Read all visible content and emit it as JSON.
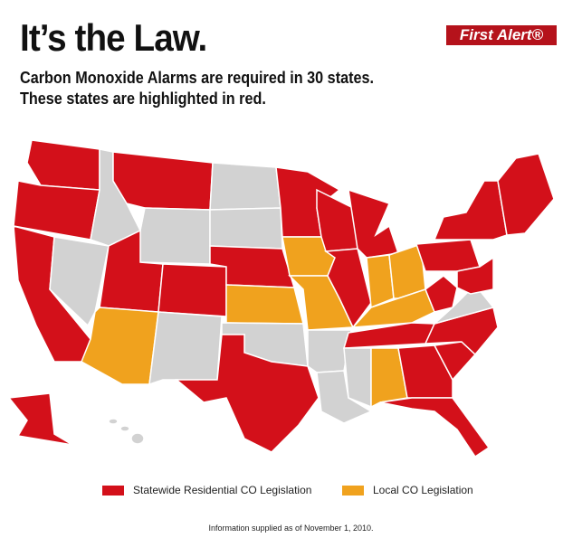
{
  "header": {
    "title": "It’s the Law.",
    "subtitle_line1": "Carbon Monoxide Alarms are required in 30 states.",
    "subtitle_line2": "These states are highlighted in red."
  },
  "logo": {
    "text": "First Alert®"
  },
  "colors": {
    "statewide": "#d3101a",
    "local": "#f0a21e",
    "none": "#d2d2d2"
  },
  "legend": [
    {
      "label": "Statewide Residential CO Legislation",
      "category": "statewide"
    },
    {
      "label": "Local CO Legislation",
      "category": "local"
    }
  ],
  "states": {
    "WA": "statewide",
    "OR": "statewide",
    "CA": "statewide",
    "NV": "none",
    "ID": "none",
    "MT": "statewide",
    "WY": "none",
    "UT": "statewide",
    "CO": "statewide",
    "AZ": "local",
    "NM": "none",
    "ND": "none",
    "SD": "none",
    "NE": "statewide",
    "KS": "local",
    "OK": "none",
    "TX": "statewide",
    "MN": "statewide",
    "IA": "local",
    "MO": "local",
    "AR": "none",
    "LA": "none",
    "WI": "statewide",
    "IL": "statewide",
    "MI": "statewide",
    "IN": "local",
    "OH": "local",
    "KY": "local",
    "TN": "statewide",
    "MS": "none",
    "AL": "local",
    "GA": "statewide",
    "FL": "statewide",
    "SC": "statewide",
    "NC": "statewide",
    "VA": "none",
    "WV": "statewide",
    "PA": "statewide",
    "NY": "statewide",
    "MD": "statewide",
    "NE_REGION": "statewide",
    "AK": "statewide",
    "HI": "none"
  },
  "footnote": "Information supplied as of November 1, 2010."
}
